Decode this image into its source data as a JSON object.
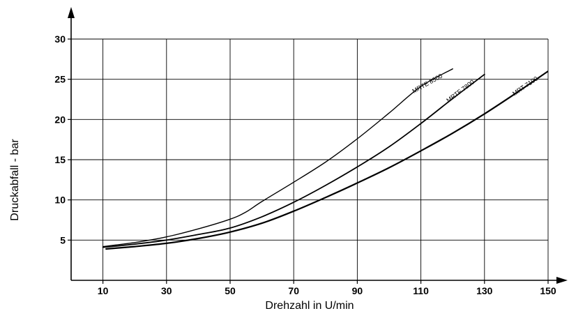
{
  "chart_data": {
    "type": "line",
    "title": "",
    "xlabel": "Drehzahl in U/min",
    "ylabel": "Druckabfall - bar",
    "xlim": [
      0,
      150
    ],
    "ylim": [
      0,
      30
    ],
    "xticks": [
      10,
      30,
      50,
      70,
      90,
      110,
      130,
      150
    ],
    "yticks": [
      5,
      10,
      15,
      20,
      25,
      30
    ],
    "grid": true,
    "legend": "none",
    "series": [
      {
        "name": "MRTE 8500",
        "x": [
          10,
          20,
          30,
          40,
          50,
          55,
          60,
          70,
          80,
          90,
          100,
          110,
          120
        ],
        "y": [
          4.2,
          4.7,
          5.4,
          6.4,
          7.6,
          8.5,
          9.8,
          12.2,
          14.7,
          17.6,
          20.8,
          24.1,
          26.3
        ]
      },
      {
        "name": "MRTF 7800",
        "x": [
          10,
          20,
          30,
          40,
          50,
          60,
          70,
          80,
          90,
          100,
          110,
          120,
          130
        ],
        "y": [
          4.1,
          4.5,
          5.0,
          5.7,
          6.5,
          7.9,
          9.7,
          11.8,
          14.1,
          16.6,
          19.5,
          22.6,
          25.6
        ]
      },
      {
        "name": "MRT 7100",
        "x": [
          11,
          20,
          30,
          40,
          50,
          60,
          70,
          80,
          90,
          100,
          110,
          120,
          130,
          140,
          150
        ],
        "y": [
          3.9,
          4.2,
          4.6,
          5.2,
          6.0,
          7.1,
          8.6,
          10.3,
          12.1,
          14.0,
          16.1,
          18.3,
          20.7,
          23.3,
          26.0
        ]
      }
    ]
  }
}
